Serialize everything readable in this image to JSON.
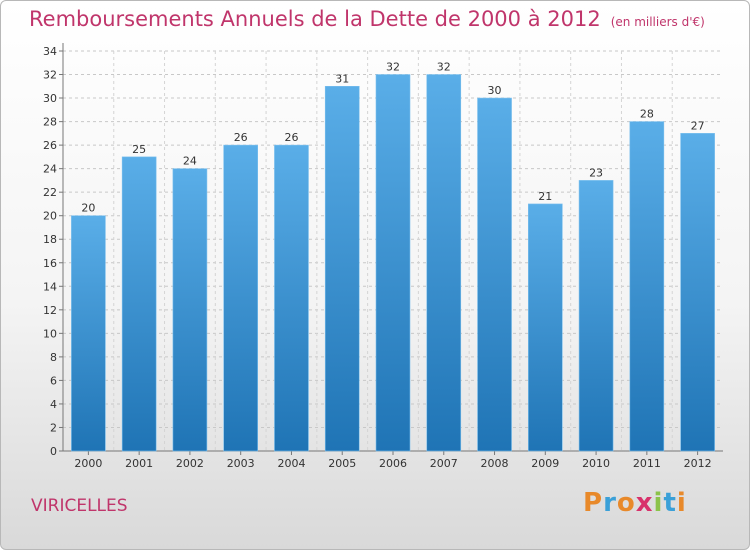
{
  "header": {
    "title": "Remboursements Annuels de la Dette de 2000 à 2012",
    "unit": "(en milliers d'€)"
  },
  "footer": {
    "commune": "VIRICELLES",
    "logo": "Proxiti"
  },
  "colors": {
    "title": "#c0356b",
    "bar_top": "#5aaee8",
    "bar_bottom": "#1f74b5"
  },
  "chart_data": {
    "type": "bar",
    "title": "Remboursements Annuels de la Dette de 2000 à 2012",
    "xlabel": "",
    "ylabel": "",
    "categories": [
      "2000",
      "2001",
      "2002",
      "2003",
      "2004",
      "2005",
      "2006",
      "2007",
      "2008",
      "2009",
      "2010",
      "2011",
      "2012"
    ],
    "values": [
      20,
      25,
      24,
      26,
      26,
      31,
      32,
      32,
      30,
      21,
      23,
      28,
      27
    ],
    "ylim": [
      0,
      34
    ],
    "yticks": [
      0,
      2,
      4,
      6,
      8,
      10,
      12,
      14,
      16,
      18,
      20,
      22,
      24,
      26,
      28,
      30,
      32,
      34
    ],
    "grid": true,
    "data_labels": true
  }
}
